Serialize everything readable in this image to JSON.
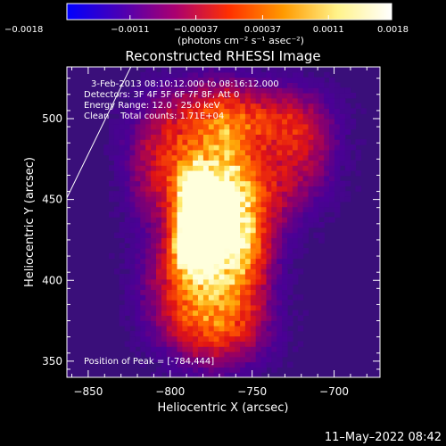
{
  "chart_data": {
    "type": "heatmap",
    "title": "Reconstructed RHESSI Image",
    "colorbar": {
      "ticks": [
        "−0.0018",
        "−0.0011",
        "−0.00037",
        "0.00037",
        "0.0011",
        "0.0018"
      ],
      "units": "(photons cm⁻² s⁻¹ asec⁻²)",
      "min": -0.0018,
      "max": 0.0018,
      "colormap": [
        "#0000ff",
        "#4b00b4",
        "#aa0070",
        "#ff3000",
        "#ff9a00",
        "#fff38a",
        "#ffffff"
      ]
    },
    "xlabel": "Heliocentric X (arcsec)",
    "ylabel": "Heliocentric Y (arcsec)",
    "xlim": [
      -863,
      -672
    ],
    "ylim": [
      340,
      532
    ],
    "xticks": [
      -850,
      -800,
      -750,
      -700
    ],
    "yticks": [
      350,
      400,
      450,
      500
    ],
    "xtick_labels": [
      "−850",
      "−800",
      "−750",
      "−700"
    ],
    "ytick_labels": [
      "350",
      "400",
      "450",
      "500"
    ],
    "annotations": [
      "3-Feb-2013 08:10:12.000 to 08:16:12.000",
      "Detectors: 3F 4F 5F 6F 7F 8F, Att 0",
      "Energy Range: 12.0 - 25.0 keV",
      "Clean    Total counts: 1.71E+04"
    ],
    "peak_label": "Position of Peak = [-784,444]",
    "peak": [
      -784,
      444
    ],
    "limb_line": [
      [
        -863,
        451
      ],
      [
        -824,
        532
      ]
    ],
    "sources": [
      {
        "x": -787,
        "y": 445,
        "sx": 7,
        "sy": 16,
        "amp": 1.0
      },
      {
        "x": -788,
        "y": 418,
        "sx": 8,
        "sy": 10,
        "amp": 0.82
      },
      {
        "x": -777,
        "y": 440,
        "sx": 14,
        "sy": 38,
        "amp": 0.62
      },
      {
        "x": -765,
        "y": 450,
        "sx": 10,
        "sy": 30,
        "amp": 0.5
      },
      {
        "x": -755,
        "y": 415,
        "sx": 12,
        "sy": 25,
        "amp": 0.42
      },
      {
        "x": -745,
        "y": 455,
        "sx": 14,
        "sy": 22,
        "amp": 0.3
      },
      {
        "x": -790,
        "y": 395,
        "sx": 18,
        "sy": 22,
        "amp": 0.45
      },
      {
        "x": -805,
        "y": 470,
        "sx": 15,
        "sy": 25,
        "amp": 0.4
      },
      {
        "x": -770,
        "y": 368,
        "sx": 20,
        "sy": 16,
        "amp": 0.35
      },
      {
        "x": -765,
        "y": 500,
        "sx": 25,
        "sy": 14,
        "amp": 0.35
      },
      {
        "x": -728,
        "y": 495,
        "sx": 18,
        "sy": 15,
        "amp": 0.25
      },
      {
        "x": -720,
        "y": 470,
        "sx": 14,
        "sy": 20,
        "amp": 0.22
      }
    ]
  },
  "footer": {
    "date_label": "11–May–2022 08:42"
  }
}
